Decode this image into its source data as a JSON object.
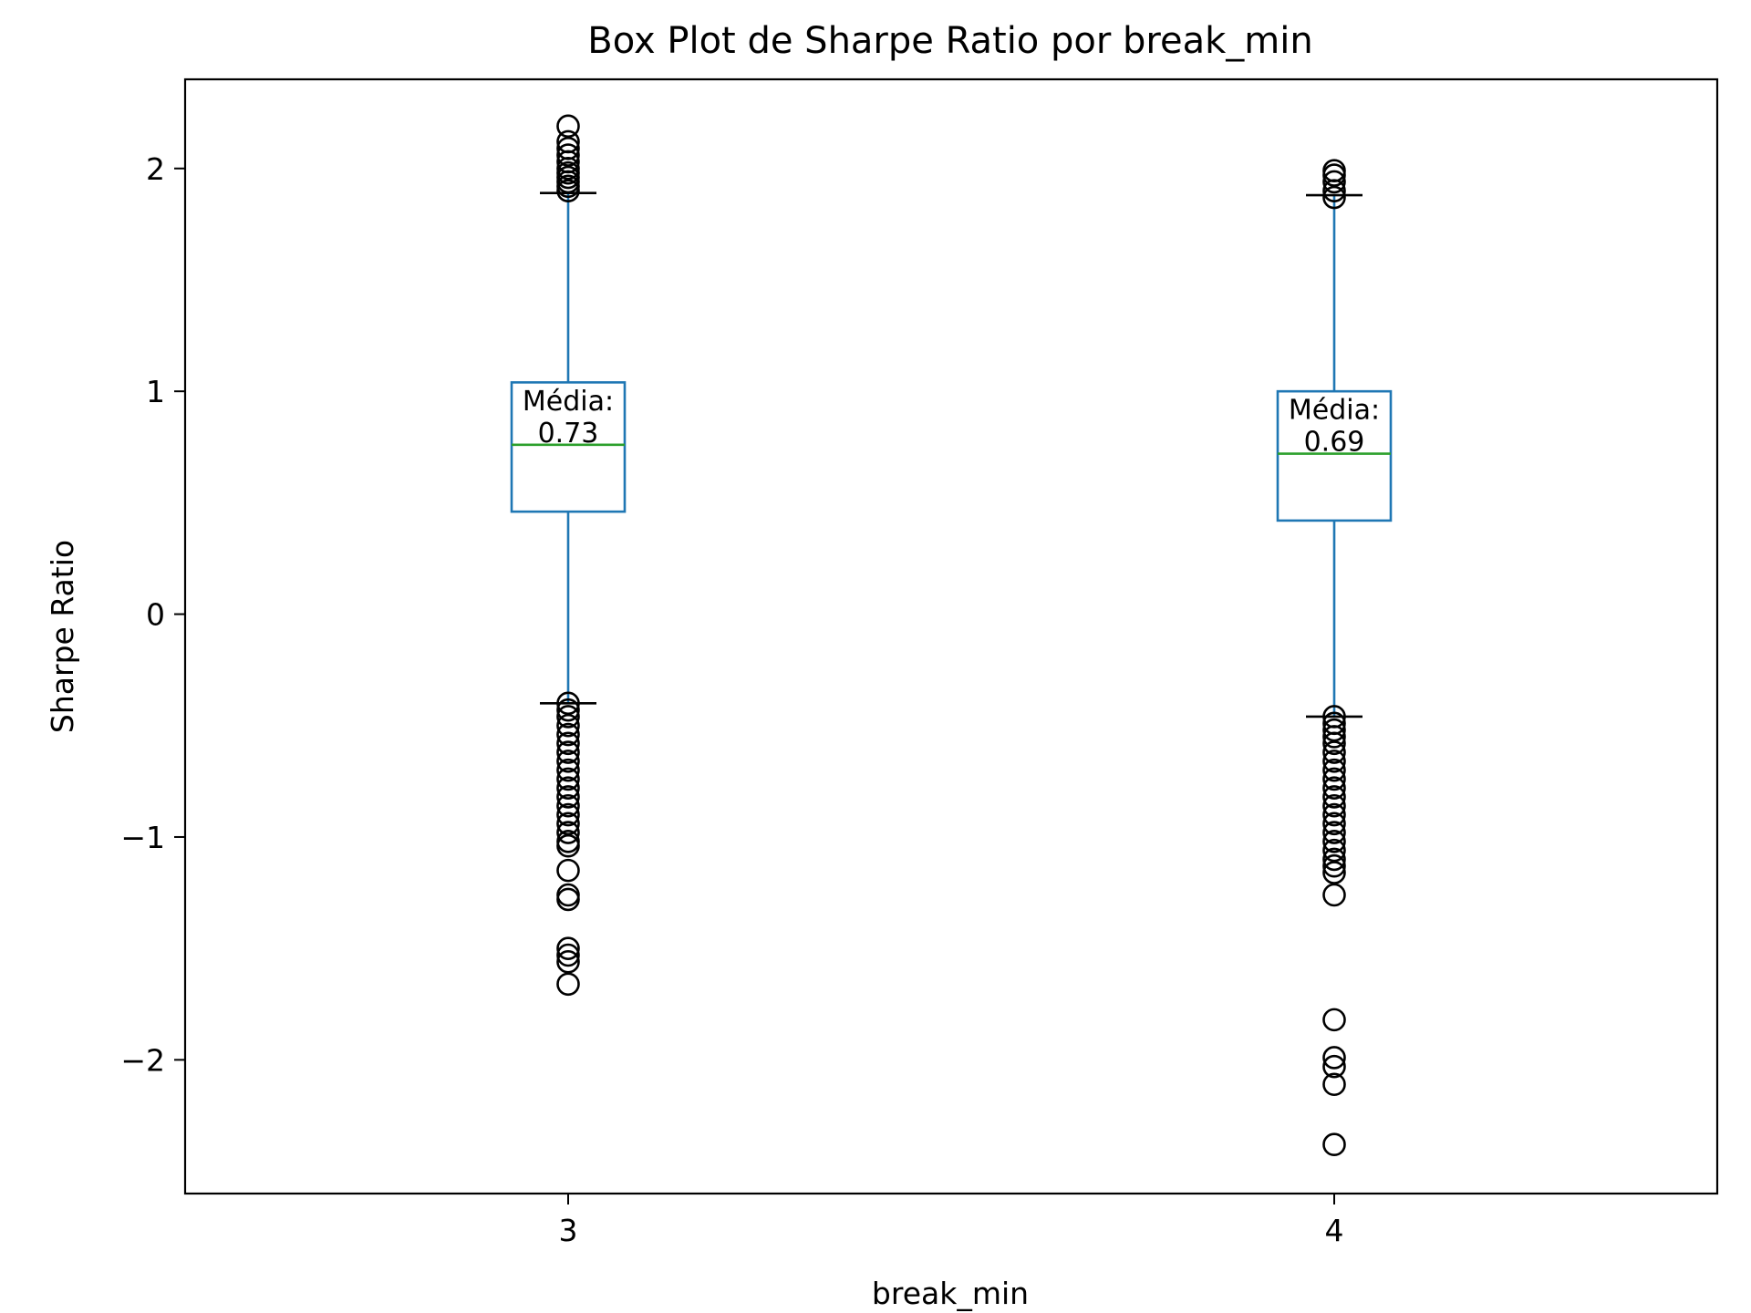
{
  "chart_data": {
    "type": "box",
    "title": "Box Plot de Sharpe Ratio por break_min",
    "xlabel": "break_min",
    "ylabel": "Sharpe Ratio",
    "categories": [
      "3",
      "4"
    ],
    "ylim": [
      -2.6,
      2.4
    ],
    "yticks": [
      -2,
      -1,
      0,
      1,
      2
    ],
    "ytick_labels": [
      "−2",
      "−1",
      "0",
      "1",
      "2"
    ],
    "grid": false,
    "colors": {
      "box": "#1f77b4",
      "median": "#2ca02c",
      "caps": "#000000",
      "fliers": "#000000"
    },
    "boxes": [
      {
        "category": "3",
        "whisker_low": -0.4,
        "q1": 0.46,
        "median": 0.76,
        "q3": 1.04,
        "whisker_high": 1.89,
        "mean_label": "Média:\n0.73",
        "outliers": [
          2.19,
          2.12,
          2.09,
          2.06,
          2.03,
          2.0,
          1.98,
          1.96,
          1.94,
          1.92,
          1.9,
          -0.4,
          -0.43,
          -0.46,
          -0.5,
          -0.54,
          -0.58,
          -0.62,
          -0.66,
          -0.7,
          -0.74,
          -0.78,
          -0.82,
          -0.86,
          -0.9,
          -0.94,
          -0.98,
          -1.02,
          -1.04,
          -1.15,
          -1.26,
          -1.28,
          -1.5,
          -1.53,
          -1.56,
          -1.66
        ]
      },
      {
        "category": "4",
        "whisker_low": -0.46,
        "q1": 0.42,
        "median": 0.72,
        "q3": 1.0,
        "whisker_high": 1.88,
        "mean_label": "Média:\n0.69",
        "outliers": [
          1.99,
          1.97,
          1.94,
          1.9,
          1.87,
          -0.46,
          -0.49,
          -0.52,
          -0.55,
          -0.58,
          -0.62,
          -0.66,
          -0.7,
          -0.74,
          -0.78,
          -0.82,
          -0.86,
          -0.9,
          -0.94,
          -0.98,
          -1.02,
          -1.06,
          -1.1,
          -1.13,
          -1.16,
          -1.26,
          -1.82,
          -1.99,
          -2.03,
          -2.11,
          -2.38
        ]
      }
    ]
  }
}
